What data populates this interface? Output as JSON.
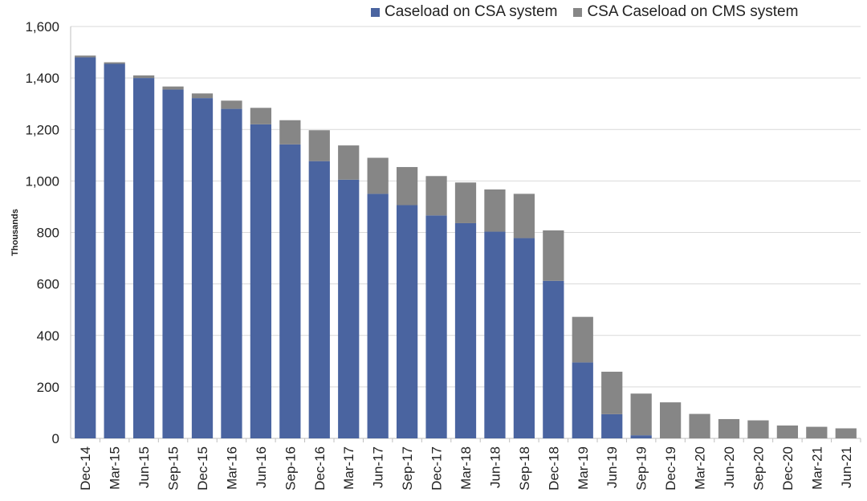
{
  "chart_data": {
    "type": "bar",
    "stacked": true,
    "ylabel": "Thousands",
    "ylim": [
      0,
      1600
    ],
    "yticks": [
      "0",
      "200",
      "400",
      "600",
      "800",
      "1,000",
      "1,200",
      "1,400",
      "1,600"
    ],
    "ytick_values": [
      0,
      200,
      400,
      600,
      800,
      1000,
      1200,
      1400,
      1600
    ],
    "grid": true,
    "legend_position": "top-right",
    "categories": [
      "Dec-14",
      "Mar-15",
      "Jun-15",
      "Sep-15",
      "Dec-15",
      "Mar-16",
      "Jun-16",
      "Sep-16",
      "Dec-16",
      "Mar-17",
      "Jun-17",
      "Sep-17",
      "Dec-17",
      "Mar-18",
      "Jun-18",
      "Sep-18",
      "Dec-18",
      "Mar-19",
      "Jun-19",
      "Sep-19",
      "Dec-19",
      "Mar-20",
      "Jun-20",
      "Sep-20",
      "Dec-20",
      "Mar-21",
      "Jun-21"
    ],
    "series": [
      {
        "name": "Caseload on CSA system",
        "color": "#4a64a0",
        "values": [
          1480,
          1455,
          1400,
          1355,
          1322,
          1280,
          1220,
          1142,
          1077,
          1005,
          950,
          906,
          866,
          836,
          803,
          778,
          612,
          295,
          94,
          12,
          0,
          0,
          0,
          0,
          0,
          0,
          0
        ]
      },
      {
        "name": "CSA Caseload on CMS system",
        "color": "#868686",
        "values": [
          7,
          6,
          10,
          12,
          18,
          32,
          64,
          94,
          120,
          133,
          140,
          148,
          153,
          158,
          164,
          172,
          196,
          177,
          165,
          162,
          140,
          95,
          75,
          70,
          50,
          45,
          39
        ]
      }
    ]
  }
}
